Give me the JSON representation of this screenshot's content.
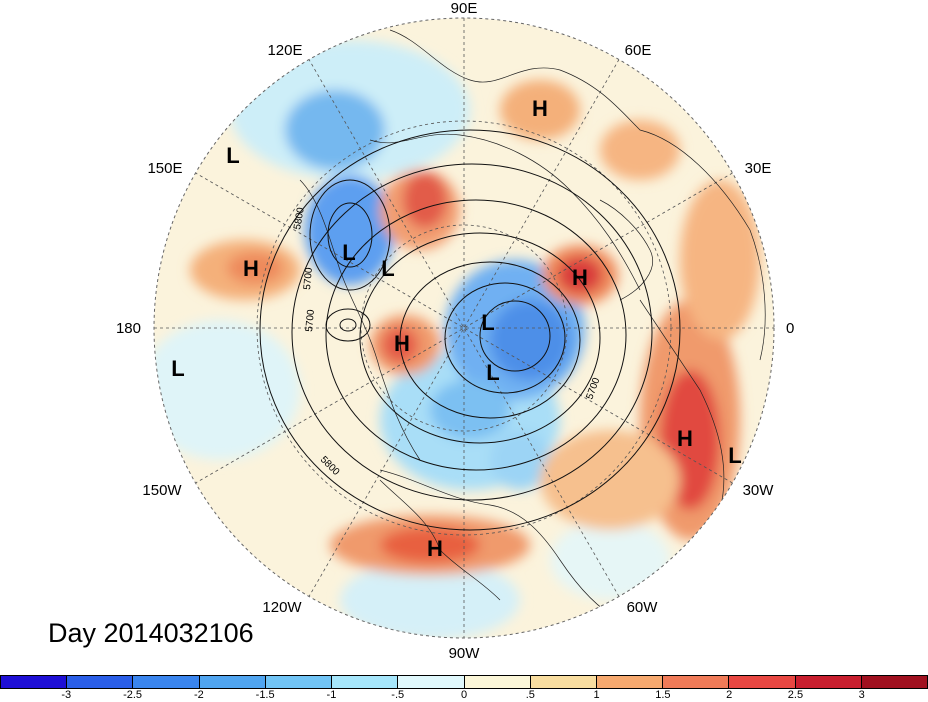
{
  "title": "Day 2014032106",
  "longitude_labels": {
    "top": "90E",
    "top_right": "60E",
    "right_top": "30E",
    "right": "0",
    "right_bottom": "30W",
    "bottom_right": "60W",
    "bottom": "90W",
    "bottom_left": "120W",
    "left_bottom": "150W",
    "left": "180",
    "left_top": "150E",
    "top_left": "120E"
  },
  "contour_labels": [
    "5800",
    "5700",
    "5700",
    "5800",
    "5700"
  ],
  "pressure_centers": [
    {
      "label": "H"
    },
    {
      "label": "L"
    },
    {
      "label": "H"
    },
    {
      "label": "L"
    },
    {
      "label": "L"
    },
    {
      "label": "H"
    },
    {
      "label": "L"
    },
    {
      "label": "H"
    },
    {
      "label": "L"
    },
    {
      "label": "L"
    },
    {
      "label": "H"
    },
    {
      "label": "L"
    },
    {
      "label": "H"
    }
  ],
  "colorbar": {
    "colors": [
      "#1e0fd6",
      "#2a5ee8",
      "#3a85ee",
      "#50a5f0",
      "#71c4f5",
      "#a6e6fb",
      "#e0f8fc",
      "#fbf6d8",
      "#f8dda0",
      "#f6a96f",
      "#f07b58",
      "#e84742",
      "#c81e2e",
      "#a0101f"
    ],
    "ticks": [
      "-3",
      "-2.5",
      "-2",
      "-1.5",
      "-1",
      "-.5",
      "0",
      ".5",
      "1",
      "1.5",
      "2",
      "2.5",
      "3"
    ]
  }
}
